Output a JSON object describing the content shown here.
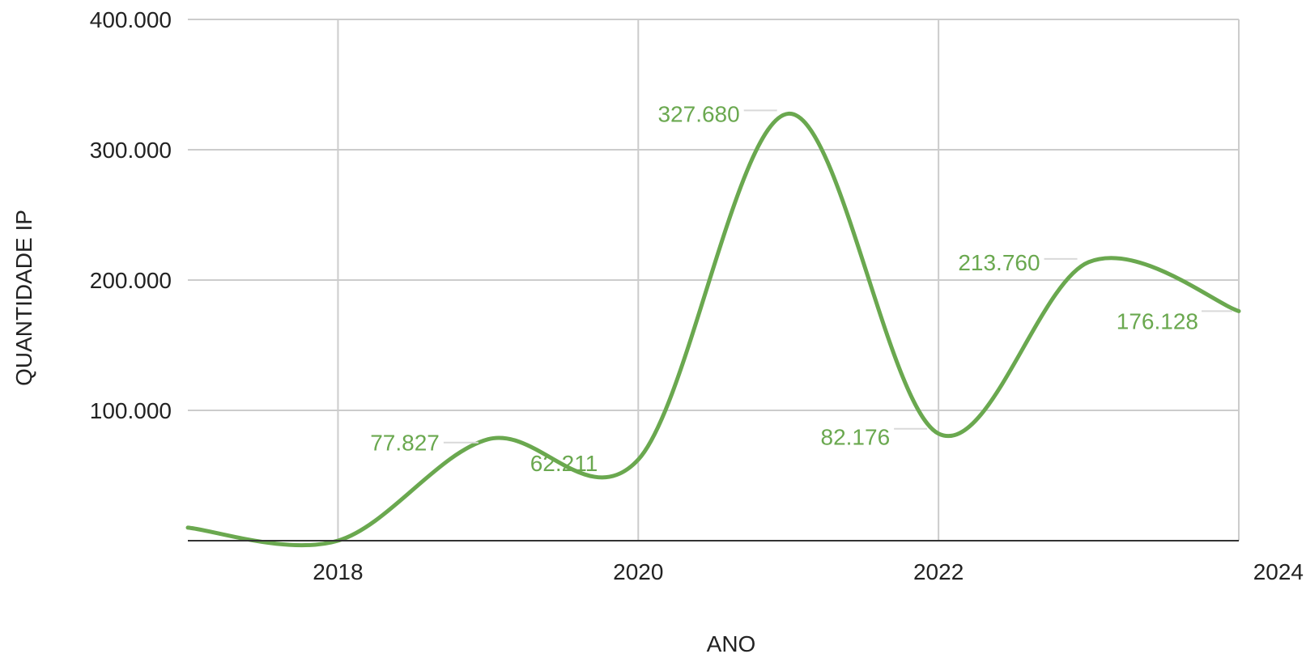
{
  "chart_data": {
    "type": "line",
    "smooth": true,
    "xlabel": "ANO",
    "ylabel": "QUANTIDADE IP",
    "xlim": [
      2017,
      2024
    ],
    "ylim": [
      0,
      400000
    ],
    "x_ticks": [
      2018,
      2020,
      2022,
      2024
    ],
    "x_tick_labels": [
      "2018",
      "2020",
      "2022",
      "2024"
    ],
    "y_ticks": [
      100000,
      200000,
      300000,
      400000
    ],
    "y_tick_labels": [
      "100.000",
      "200.000",
      "300.000",
      "400.000"
    ],
    "grid": true,
    "legend": "none",
    "colors": {
      "series": "#6aa84f",
      "grid": "#cccccc",
      "baseline": "#333333",
      "text": "#222222"
    },
    "series": [
      {
        "x": [
          2017,
          2018,
          2019,
          2020,
          2021,
          2022,
          2023,
          2024
        ],
        "values": [
          10000,
          0,
          77827,
          62211,
          327680,
          82176,
          213760,
          176128
        ]
      }
    ],
    "data_labels": [
      {
        "x": 2019,
        "text": "77.827"
      },
      {
        "x": 2020,
        "text": "62.211"
      },
      {
        "x": 2021,
        "text": "327.680"
      },
      {
        "x": 2022,
        "text": "82.176"
      },
      {
        "x": 2023,
        "text": "213.760"
      },
      {
        "x": 2024,
        "text": "176.128"
      }
    ]
  }
}
